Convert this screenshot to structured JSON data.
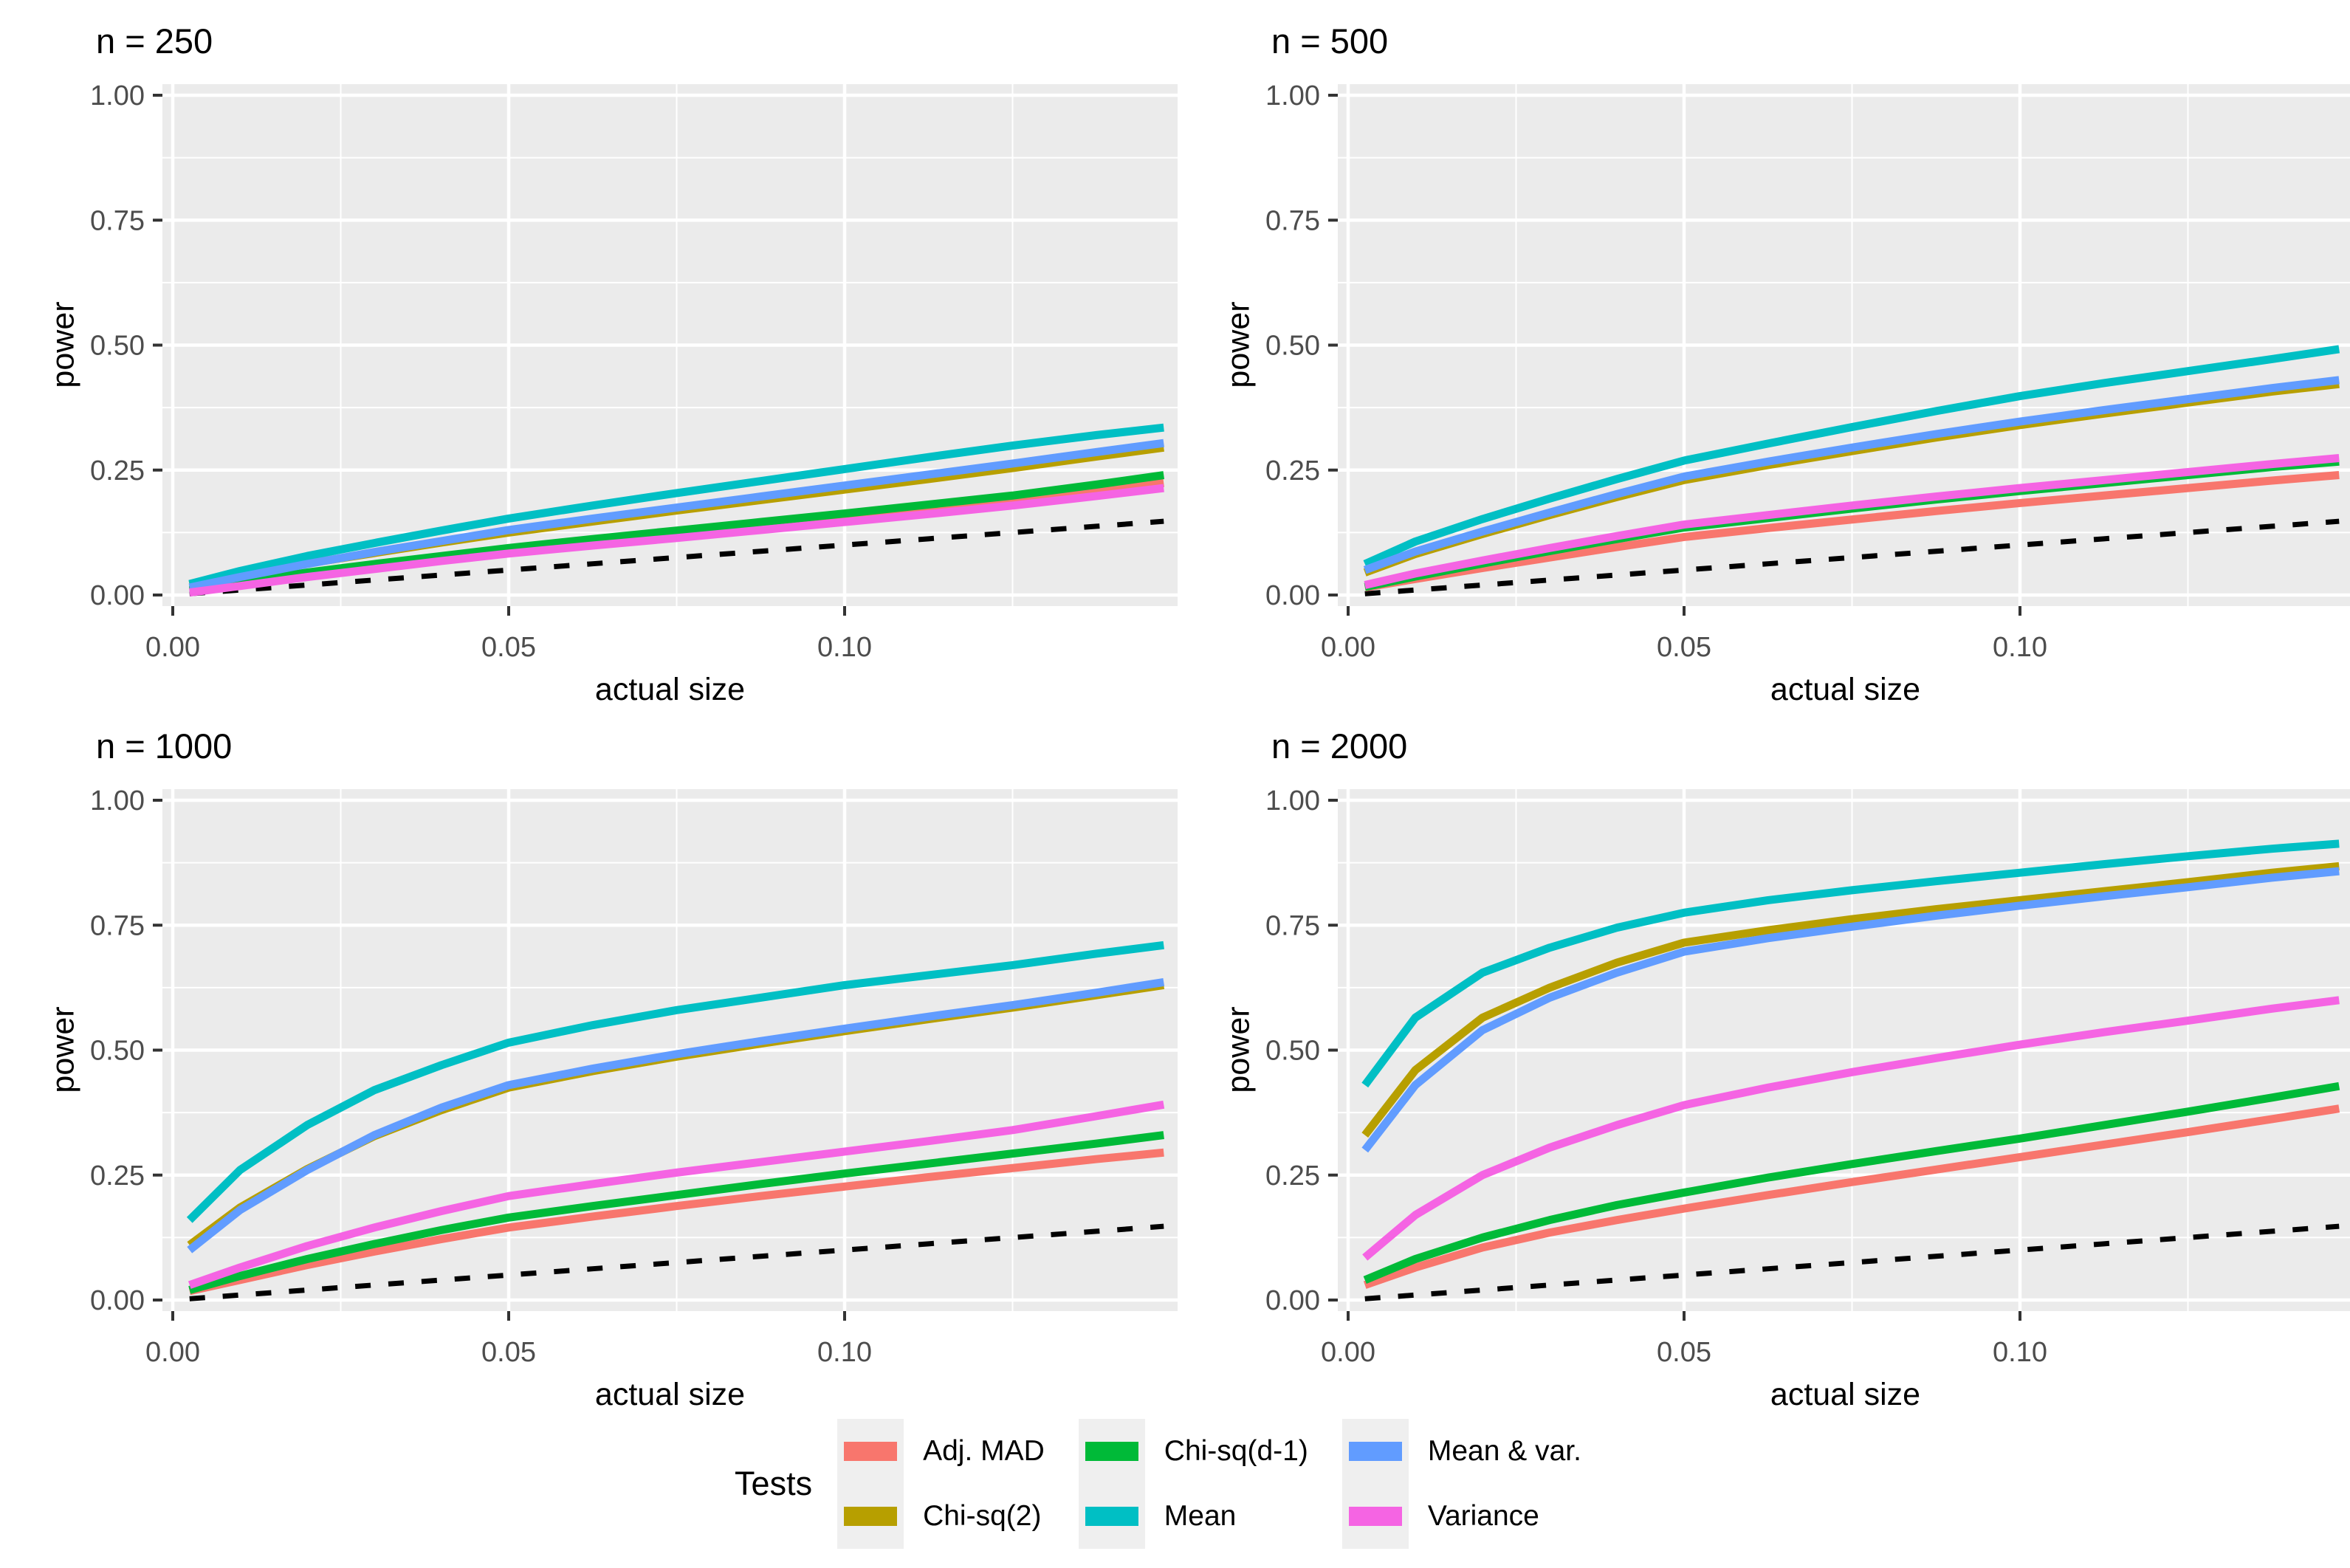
{
  "page": {
    "background": "#FFFFFF"
  },
  "style": {
    "panel_bg": "#EBEBEB",
    "gridline_color": "#FFFFFF",
    "major_grid_width": 4.5,
    "minor_grid_width": 2,
    "tick_mark_color": "#333333",
    "tick_label_color": "#4D4D4D",
    "text_color": "#000000",
    "series_line_width": 11,
    "reference_line_width": 7,
    "reference_dash": "21 24"
  },
  "legend": {
    "title": "Tests",
    "key_background": "#EFEFEF",
    "entries": [
      {
        "label": "Adj. MAD",
        "color": "#F8766D"
      },
      {
        "label": "Chi-sq(2)",
        "color": "#B79F00"
      },
      {
        "label": "Chi-sq(d-1)",
        "color": "#00BA38"
      },
      {
        "label": "Mean",
        "color": "#00BFC4"
      },
      {
        "label": "Mean & var.",
        "color": "#619CFF"
      },
      {
        "label": "Variance",
        "color": "#F564E3"
      }
    ]
  },
  "chart_data": {
    "type": "line",
    "layout": "2x2 facet grid, shared axes",
    "xlabel": "actual size",
    "ylabel": "power",
    "xlim": [
      -0.00154,
      0.1496
    ],
    "ylim": [
      -0.0222,
      1.0222
    ],
    "x_tick_values": [
      0,
      0.05,
      0.1
    ],
    "x_tick_labels": [
      "0.00",
      "0.05",
      "0.10"
    ],
    "x_minor_values": [
      0.025,
      0.075,
      0.125
    ],
    "y_tick_values": [
      0,
      0.25,
      0.5,
      0.75,
      1.0
    ],
    "y_tick_labels": [
      "0.00",
      "0.25",
      "0.50",
      "0.75",
      "1.00"
    ],
    "y_minor_values": [
      0.125,
      0.375,
      0.625,
      0.875
    ],
    "grid": "white major and minor gridlines on grey panel",
    "legend_position": "bottom",
    "x": [
      0.0025,
      0.01,
      0.02,
      0.03,
      0.04,
      0.05,
      0.0625,
      0.075,
      0.0875,
      0.1,
      0.1125,
      0.125,
      0.1375,
      0.1475
    ],
    "series_names": [
      "Adj. MAD",
      "Chi-sq(2)",
      "Chi-sq(d-1)",
      "Mean",
      "Mean & var.",
      "Variance"
    ],
    "series_colors": [
      "#F8766D",
      "#B79F00",
      "#00BA38",
      "#00BFC4",
      "#619CFF",
      "#F564E3"
    ],
    "reference_line": {
      "description": "dashed black line where power equals actual size (y = x)",
      "style": "dashed",
      "color": "#000000",
      "values_equal_x": true
    },
    "panels": [
      {
        "title": "n = 250",
        "series": [
          [
            0.008,
            0.022,
            0.04,
            0.056,
            0.071,
            0.086,
            0.103,
            0.119,
            0.135,
            0.152,
            0.169,
            0.187,
            0.207,
            0.224
          ],
          [
            0.02,
            0.04,
            0.063,
            0.084,
            0.105,
            0.125,
            0.147,
            0.169,
            0.19,
            0.211,
            0.232,
            0.254,
            0.277,
            0.295
          ],
          [
            0.01,
            0.025,
            0.045,
            0.062,
            0.078,
            0.094,
            0.112,
            0.129,
            0.146,
            0.163,
            0.181,
            0.199,
            0.221,
            0.24
          ],
          [
            0.022,
            0.048,
            0.078,
            0.104,
            0.129,
            0.153,
            0.179,
            0.204,
            0.228,
            0.252,
            0.276,
            0.299,
            0.32,
            0.335
          ],
          [
            0.015,
            0.036,
            0.062,
            0.086,
            0.108,
            0.13,
            0.153,
            0.175,
            0.197,
            0.219,
            0.241,
            0.263,
            0.286,
            0.304
          ],
          [
            0.005,
            0.018,
            0.036,
            0.052,
            0.068,
            0.083,
            0.099,
            0.114,
            0.13,
            0.146,
            0.162,
            0.179,
            0.198,
            0.214
          ]
        ]
      },
      {
        "title": "n = 500",
        "series": [
          [
            0.015,
            0.032,
            0.054,
            0.075,
            0.096,
            0.116,
            0.134,
            0.151,
            0.168,
            0.184,
            0.199,
            0.214,
            0.229,
            0.24
          ],
          [
            0.045,
            0.082,
            0.122,
            0.16,
            0.196,
            0.23,
            0.26,
            0.288,
            0.315,
            0.34,
            0.363,
            0.385,
            0.407,
            0.422
          ],
          [
            0.016,
            0.037,
            0.063,
            0.088,
            0.112,
            0.135,
            0.154,
            0.173,
            0.191,
            0.208,
            0.224,
            0.24,
            0.256,
            0.267
          ],
          [
            0.062,
            0.107,
            0.152,
            0.193,
            0.232,
            0.269,
            0.303,
            0.336,
            0.368,
            0.398,
            0.424,
            0.448,
            0.472,
            0.492
          ],
          [
            0.05,
            0.087,
            0.127,
            0.165,
            0.202,
            0.237,
            0.267,
            0.295,
            0.322,
            0.347,
            0.37,
            0.392,
            0.414,
            0.43
          ],
          [
            0.02,
            0.043,
            0.069,
            0.094,
            0.118,
            0.141,
            0.16,
            0.179,
            0.197,
            0.214,
            0.23,
            0.246,
            0.262,
            0.274
          ]
        ]
      },
      {
        "title": "n = 1000",
        "series": [
          [
            0.018,
            0.04,
            0.07,
            0.097,
            0.122,
            0.145,
            0.167,
            0.188,
            0.208,
            0.227,
            0.246,
            0.264,
            0.282,
            0.295
          ],
          [
            0.11,
            0.185,
            0.262,
            0.328,
            0.38,
            0.425,
            0.458,
            0.487,
            0.513,
            0.538,
            0.562,
            0.585,
            0.61,
            0.63
          ],
          [
            0.02,
            0.048,
            0.082,
            0.112,
            0.14,
            0.165,
            0.188,
            0.21,
            0.232,
            0.253,
            0.273,
            0.293,
            0.313,
            0.33
          ],
          [
            0.16,
            0.26,
            0.35,
            0.42,
            0.47,
            0.515,
            0.55,
            0.58,
            0.605,
            0.63,
            0.65,
            0.67,
            0.693,
            0.71
          ],
          [
            0.1,
            0.18,
            0.26,
            0.33,
            0.385,
            0.43,
            0.463,
            0.492,
            0.518,
            0.543,
            0.567,
            0.59,
            0.615,
            0.636
          ],
          [
            0.03,
            0.065,
            0.108,
            0.145,
            0.178,
            0.208,
            0.232,
            0.255,
            0.276,
            0.297,
            0.318,
            0.34,
            0.368,
            0.391
          ]
        ]
      },
      {
        "title": "n = 2000",
        "series": [
          [
            0.03,
            0.065,
            0.105,
            0.135,
            0.16,
            0.183,
            0.21,
            0.236,
            0.261,
            0.286,
            0.311,
            0.336,
            0.362,
            0.383
          ],
          [
            0.33,
            0.46,
            0.565,
            0.625,
            0.675,
            0.715,
            0.74,
            0.762,
            0.782,
            0.8,
            0.818,
            0.836,
            0.855,
            0.868
          ],
          [
            0.04,
            0.082,
            0.125,
            0.16,
            0.19,
            0.215,
            0.245,
            0.272,
            0.298,
            0.323,
            0.35,
            0.377,
            0.405,
            0.428
          ],
          [
            0.43,
            0.565,
            0.655,
            0.705,
            0.745,
            0.775,
            0.8,
            0.82,
            0.838,
            0.855,
            0.872,
            0.888,
            0.903,
            0.913
          ],
          [
            0.3,
            0.43,
            0.54,
            0.605,
            0.655,
            0.697,
            0.724,
            0.747,
            0.769,
            0.789,
            0.808,
            0.826,
            0.845,
            0.858
          ],
          [
            0.085,
            0.17,
            0.25,
            0.305,
            0.35,
            0.39,
            0.425,
            0.456,
            0.484,
            0.511,
            0.536,
            0.559,
            0.583,
            0.6
          ]
        ]
      }
    ]
  }
}
